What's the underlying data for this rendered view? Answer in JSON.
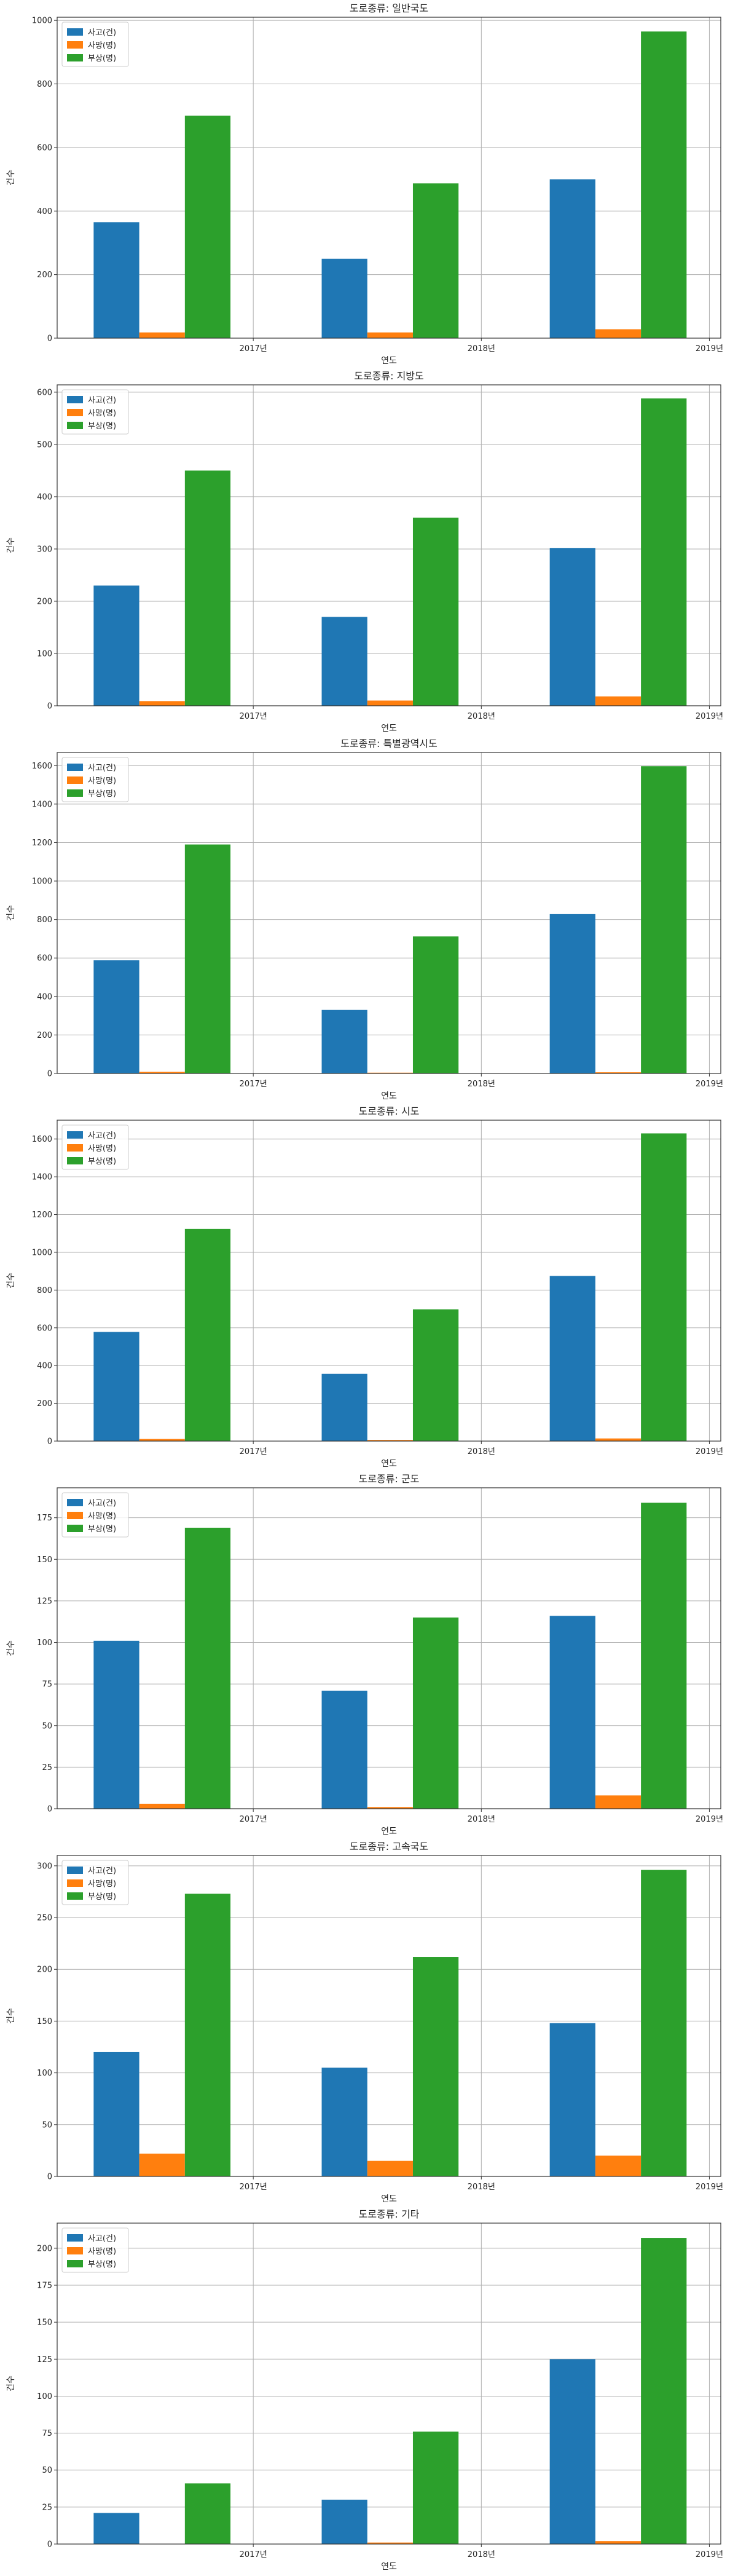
{
  "chart_data": [
    {
      "type": "bar",
      "title": "도로종류: 일반국도",
      "xlabel": "연도",
      "ylabel": "건수",
      "categories": [
        "2017년",
        "2018년",
        "2019년"
      ],
      "series": [
        {
          "name": "사고(건)",
          "values": [
            365,
            250,
            500
          ]
        },
        {
          "name": "사망(명)",
          "values": [
            18,
            18,
            28
          ]
        },
        {
          "name": "부상(명)",
          "values": [
            700,
            487,
            965
          ]
        }
      ],
      "ylim": [
        0,
        1010
      ],
      "yticks": [
        0,
        200,
        400,
        600,
        800,
        1000
      ],
      "grid": true,
      "legend": "top-left"
    },
    {
      "type": "bar",
      "title": "도로종류: 지방도",
      "xlabel": "연도",
      "ylabel": "건수",
      "categories": [
        "2017년",
        "2018년",
        "2019년"
      ],
      "series": [
        {
          "name": "사고(건)",
          "values": [
            230,
            170,
            302
          ]
        },
        {
          "name": "사망(명)",
          "values": [
            9,
            10,
            18
          ]
        },
        {
          "name": "부상(명)",
          "values": [
            450,
            360,
            588
          ]
        }
      ],
      "ylim": [
        0,
        614
      ],
      "yticks": [
        0,
        100,
        200,
        300,
        400,
        500,
        600
      ],
      "grid": true,
      "legend": "top-left"
    },
    {
      "type": "bar",
      "title": "도로종류: 특별광역시도",
      "xlabel": "연도",
      "ylabel": "건수",
      "categories": [
        "2017년",
        "2018년",
        "2019년"
      ],
      "series": [
        {
          "name": "사고(건)",
          "values": [
            588,
            330,
            828
          ]
        },
        {
          "name": "사망(명)",
          "values": [
            8,
            4,
            6
          ]
        },
        {
          "name": "부상(명)",
          "values": [
            1190,
            712,
            1597
          ]
        }
      ],
      "ylim": [
        0,
        1668
      ],
      "yticks": [
        0,
        200,
        400,
        600,
        800,
        1000,
        1200,
        1400,
        1600
      ],
      "grid": true,
      "legend": "top-left"
    },
    {
      "type": "bar",
      "title": "도로종류: 시도",
      "xlabel": "연도",
      "ylabel": "건수",
      "categories": [
        "2017년",
        "2018년",
        "2019년"
      ],
      "series": [
        {
          "name": "사고(건)",
          "values": [
            578,
            356,
            875
          ]
        },
        {
          "name": "사망(명)",
          "values": [
            11,
            6,
            14
          ]
        },
        {
          "name": "부상(명)",
          "values": [
            1124,
            698,
            1630
          ]
        }
      ],
      "ylim": [
        0,
        1700
      ],
      "yticks": [
        0,
        200,
        400,
        600,
        800,
        1000,
        1200,
        1400,
        1600
      ],
      "grid": true,
      "legend": "top-left"
    },
    {
      "type": "bar",
      "title": "도로종류: 군도",
      "xlabel": "연도",
      "ylabel": "건수",
      "categories": [
        "2017년",
        "2018년",
        "2019년"
      ],
      "series": [
        {
          "name": "사고(건)",
          "values": [
            101,
            71,
            116
          ]
        },
        {
          "name": "사망(명)",
          "values": [
            3,
            1,
            8
          ]
        },
        {
          "name": "부상(명)",
          "values": [
            169,
            115,
            184
          ]
        }
      ],
      "ylim": [
        0,
        193
      ],
      "yticks": [
        0,
        25,
        50,
        75,
        100,
        125,
        150,
        175
      ],
      "grid": true,
      "legend": "top-left"
    },
    {
      "type": "bar",
      "title": "도로종류: 고속국도",
      "xlabel": "연도",
      "ylabel": "건수",
      "categories": [
        "2017년",
        "2018년",
        "2019년"
      ],
      "series": [
        {
          "name": "사고(건)",
          "values": [
            120,
            105,
            148
          ]
        },
        {
          "name": "사망(명)",
          "values": [
            22,
            15,
            20
          ]
        },
        {
          "name": "부상(명)",
          "values": [
            273,
            212,
            296
          ]
        }
      ],
      "ylim": [
        0,
        310
      ],
      "yticks": [
        0,
        50,
        100,
        150,
        200,
        250,
        300
      ],
      "grid": true,
      "legend": "top-left"
    },
    {
      "type": "bar",
      "title": "도로종류: 기타",
      "xlabel": "연도",
      "ylabel": "건수",
      "categories": [
        "2017년",
        "2018년",
        "2019년"
      ],
      "series": [
        {
          "name": "사고(건)",
          "values": [
            21,
            30,
            125
          ]
        },
        {
          "name": "사망(명)",
          "values": [
            0,
            1,
            2
          ]
        },
        {
          "name": "부상(명)",
          "values": [
            41,
            76,
            207
          ]
        }
      ],
      "ylim": [
        0,
        217
      ],
      "yticks": [
        0,
        25,
        50,
        75,
        100,
        125,
        150,
        175,
        200
      ],
      "grid": true,
      "legend": "top-left"
    }
  ],
  "colors": {
    "series": [
      "#1f77b4",
      "#ff7f0e",
      "#2ca02c"
    ]
  }
}
